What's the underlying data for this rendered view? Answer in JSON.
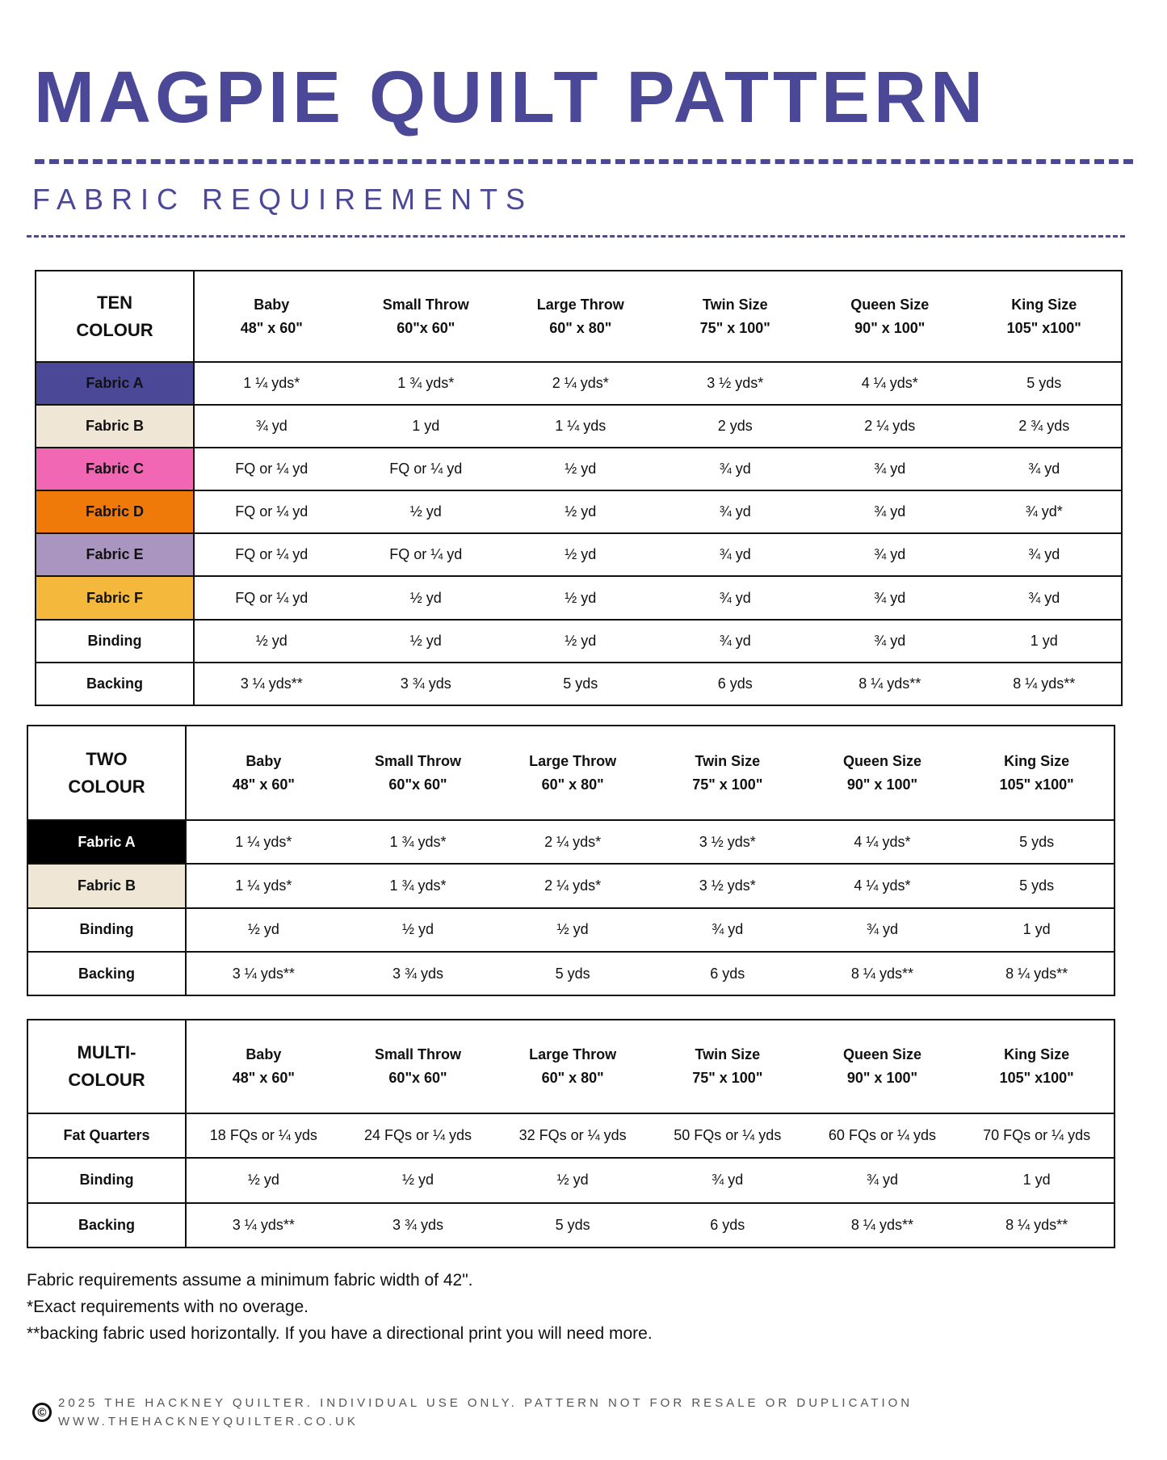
{
  "title": "MAGPIE QUILT PATTERN",
  "subtitle": "FABRIC REQUIREMENTS",
  "colors": {
    "accent": "#4b4898"
  },
  "sizes": [
    {
      "name": "Baby",
      "dims": "48\" x 60\""
    },
    {
      "name": "Small Throw",
      "dims": "60\"x 60\""
    },
    {
      "name": "Large Throw",
      "dims": "60\" x 80\""
    },
    {
      "name": "Twin Size",
      "dims": "75\" x 100\""
    },
    {
      "name": "Queen Size",
      "dims": "90\" x 100\""
    },
    {
      "name": "King Size",
      "dims": "105\" x100\""
    }
  ],
  "tables": [
    {
      "heading": [
        "TEN",
        "COLOUR"
      ],
      "rows": [
        {
          "label": "Fabric A",
          "color": "#4b4898",
          "text_color": "#111",
          "values": [
            "1 ¼ yds*",
            "1 ¾ yds*",
            "2 ¼ yds*",
            "3 ½ yds*",
            "4 ¼ yds*",
            "5 yds"
          ]
        },
        {
          "label": "Fabric B",
          "color": "#efe6d6",
          "text_color": "#111",
          "values": [
            "¾ yd",
            "1 yd",
            "1 ¼ yds",
            "2 yds",
            "2 ¼ yds",
            "2 ¾ yds"
          ]
        },
        {
          "label": "Fabric C",
          "color": "#f167b3",
          "text_color": "#111",
          "values": [
            "FQ or ¼ yd",
            "FQ or ¼ yd",
            "½ yd",
            "¾ yd",
            "¾ yd",
            "¾ yd"
          ]
        },
        {
          "label": "Fabric D",
          "color": "#ef7a0a",
          "text_color": "#111",
          "values": [
            "FQ or ¼ yd",
            "½ yd",
            "½ yd",
            "¾ yd",
            "¾ yd",
            "¾ yd*"
          ]
        },
        {
          "label": "Fabric E",
          "color": "#a995bf",
          "text_color": "#111",
          "values": [
            "FQ or ¼ yd",
            "FQ or ¼ yd",
            "½ yd",
            "¾ yd",
            "¾ yd",
            "¾ yd"
          ]
        },
        {
          "label": "Fabric F",
          "color": "#f4b93c",
          "text_color": "#111",
          "values": [
            "FQ or ¼ yd",
            "½ yd",
            "½ yd",
            "¾ yd",
            "¾ yd",
            "¾ yd"
          ]
        },
        {
          "label": "Binding",
          "color": "#ffffff",
          "text_color": "#111",
          "values": [
            "½ yd",
            "½ yd",
            "½ yd",
            "¾ yd",
            "¾ yd",
            "1 yd"
          ]
        },
        {
          "label": "Backing",
          "color": "#ffffff",
          "text_color": "#111",
          "values": [
            "3 ¼ yds**",
            "3 ¾ yds",
            "5 yds",
            "6 yds",
            "8 ¼ yds**",
            "8 ¼ yds**"
          ]
        }
      ]
    },
    {
      "heading": [
        "TWO",
        "COLOUR"
      ],
      "rows": [
        {
          "label": "Fabric A",
          "color": "#000000",
          "text_color": "#ffffff",
          "values": [
            "1 ¼ yds*",
            "1 ¾ yds*",
            "2 ¼ yds*",
            "3 ½ yds*",
            "4 ¼ yds*",
            "5 yds"
          ]
        },
        {
          "label": "Fabric B",
          "color": "#efe6d6",
          "text_color": "#111",
          "values": [
            "1 ¼ yds*",
            "1 ¾ yds*",
            "2 ¼ yds*",
            "3 ½ yds*",
            "4 ¼ yds*",
            "5 yds"
          ]
        },
        {
          "label": "Binding",
          "color": "#ffffff",
          "text_color": "#111",
          "values": [
            "½ yd",
            "½ yd",
            "½ yd",
            "¾ yd",
            "¾ yd",
            "1 yd"
          ]
        },
        {
          "label": "Backing",
          "color": "#ffffff",
          "text_color": "#111",
          "values": [
            "3 ¼ yds**",
            "3 ¾ yds",
            "5 yds",
            "6 yds",
            "8 ¼ yds**",
            "8 ¼ yds**"
          ]
        }
      ]
    },
    {
      "heading": [
        "MULTI-",
        "COLOUR"
      ],
      "rows": [
        {
          "label": "Fat Quarters",
          "color": "#ffffff",
          "text_color": "#111",
          "values": [
            "18 FQs or ¼ yds",
            "24 FQs or ¼ yds",
            "32 FQs or ¼ yds",
            "50 FQs or ¼ yds",
            "60 FQs or ¼ yds",
            "70 FQs or ¼ yds"
          ]
        },
        {
          "label": "Binding",
          "color": "#ffffff",
          "text_color": "#111",
          "values": [
            "½ yd",
            "½ yd",
            "½ yd",
            "¾ yd",
            "¾ yd",
            "1 yd"
          ]
        },
        {
          "label": "Backing",
          "color": "#ffffff",
          "text_color": "#111",
          "values": [
            "3 ¼ yds**",
            "3 ¾ yds",
            "5 yds",
            "6 yds",
            "8 ¼ yds**",
            "8 ¼ yds**"
          ]
        }
      ]
    }
  ],
  "notes": [
    "Fabric requirements assume a minimum fabric width of 42\".",
    "*Exact requirements with no overage.",
    "**backing fabric used horizontally. If you have a directional print you will need more."
  ],
  "footer": {
    "copyright_icon": "©",
    "line1": "2025 THE HACKNEY QUILTER. INDIVIDUAL USE ONLY. PATTERN NOT FOR RESALE OR DUPLICATION",
    "line2": "WWW.THEHACKNEYQUILTER.CO.UK"
  }
}
